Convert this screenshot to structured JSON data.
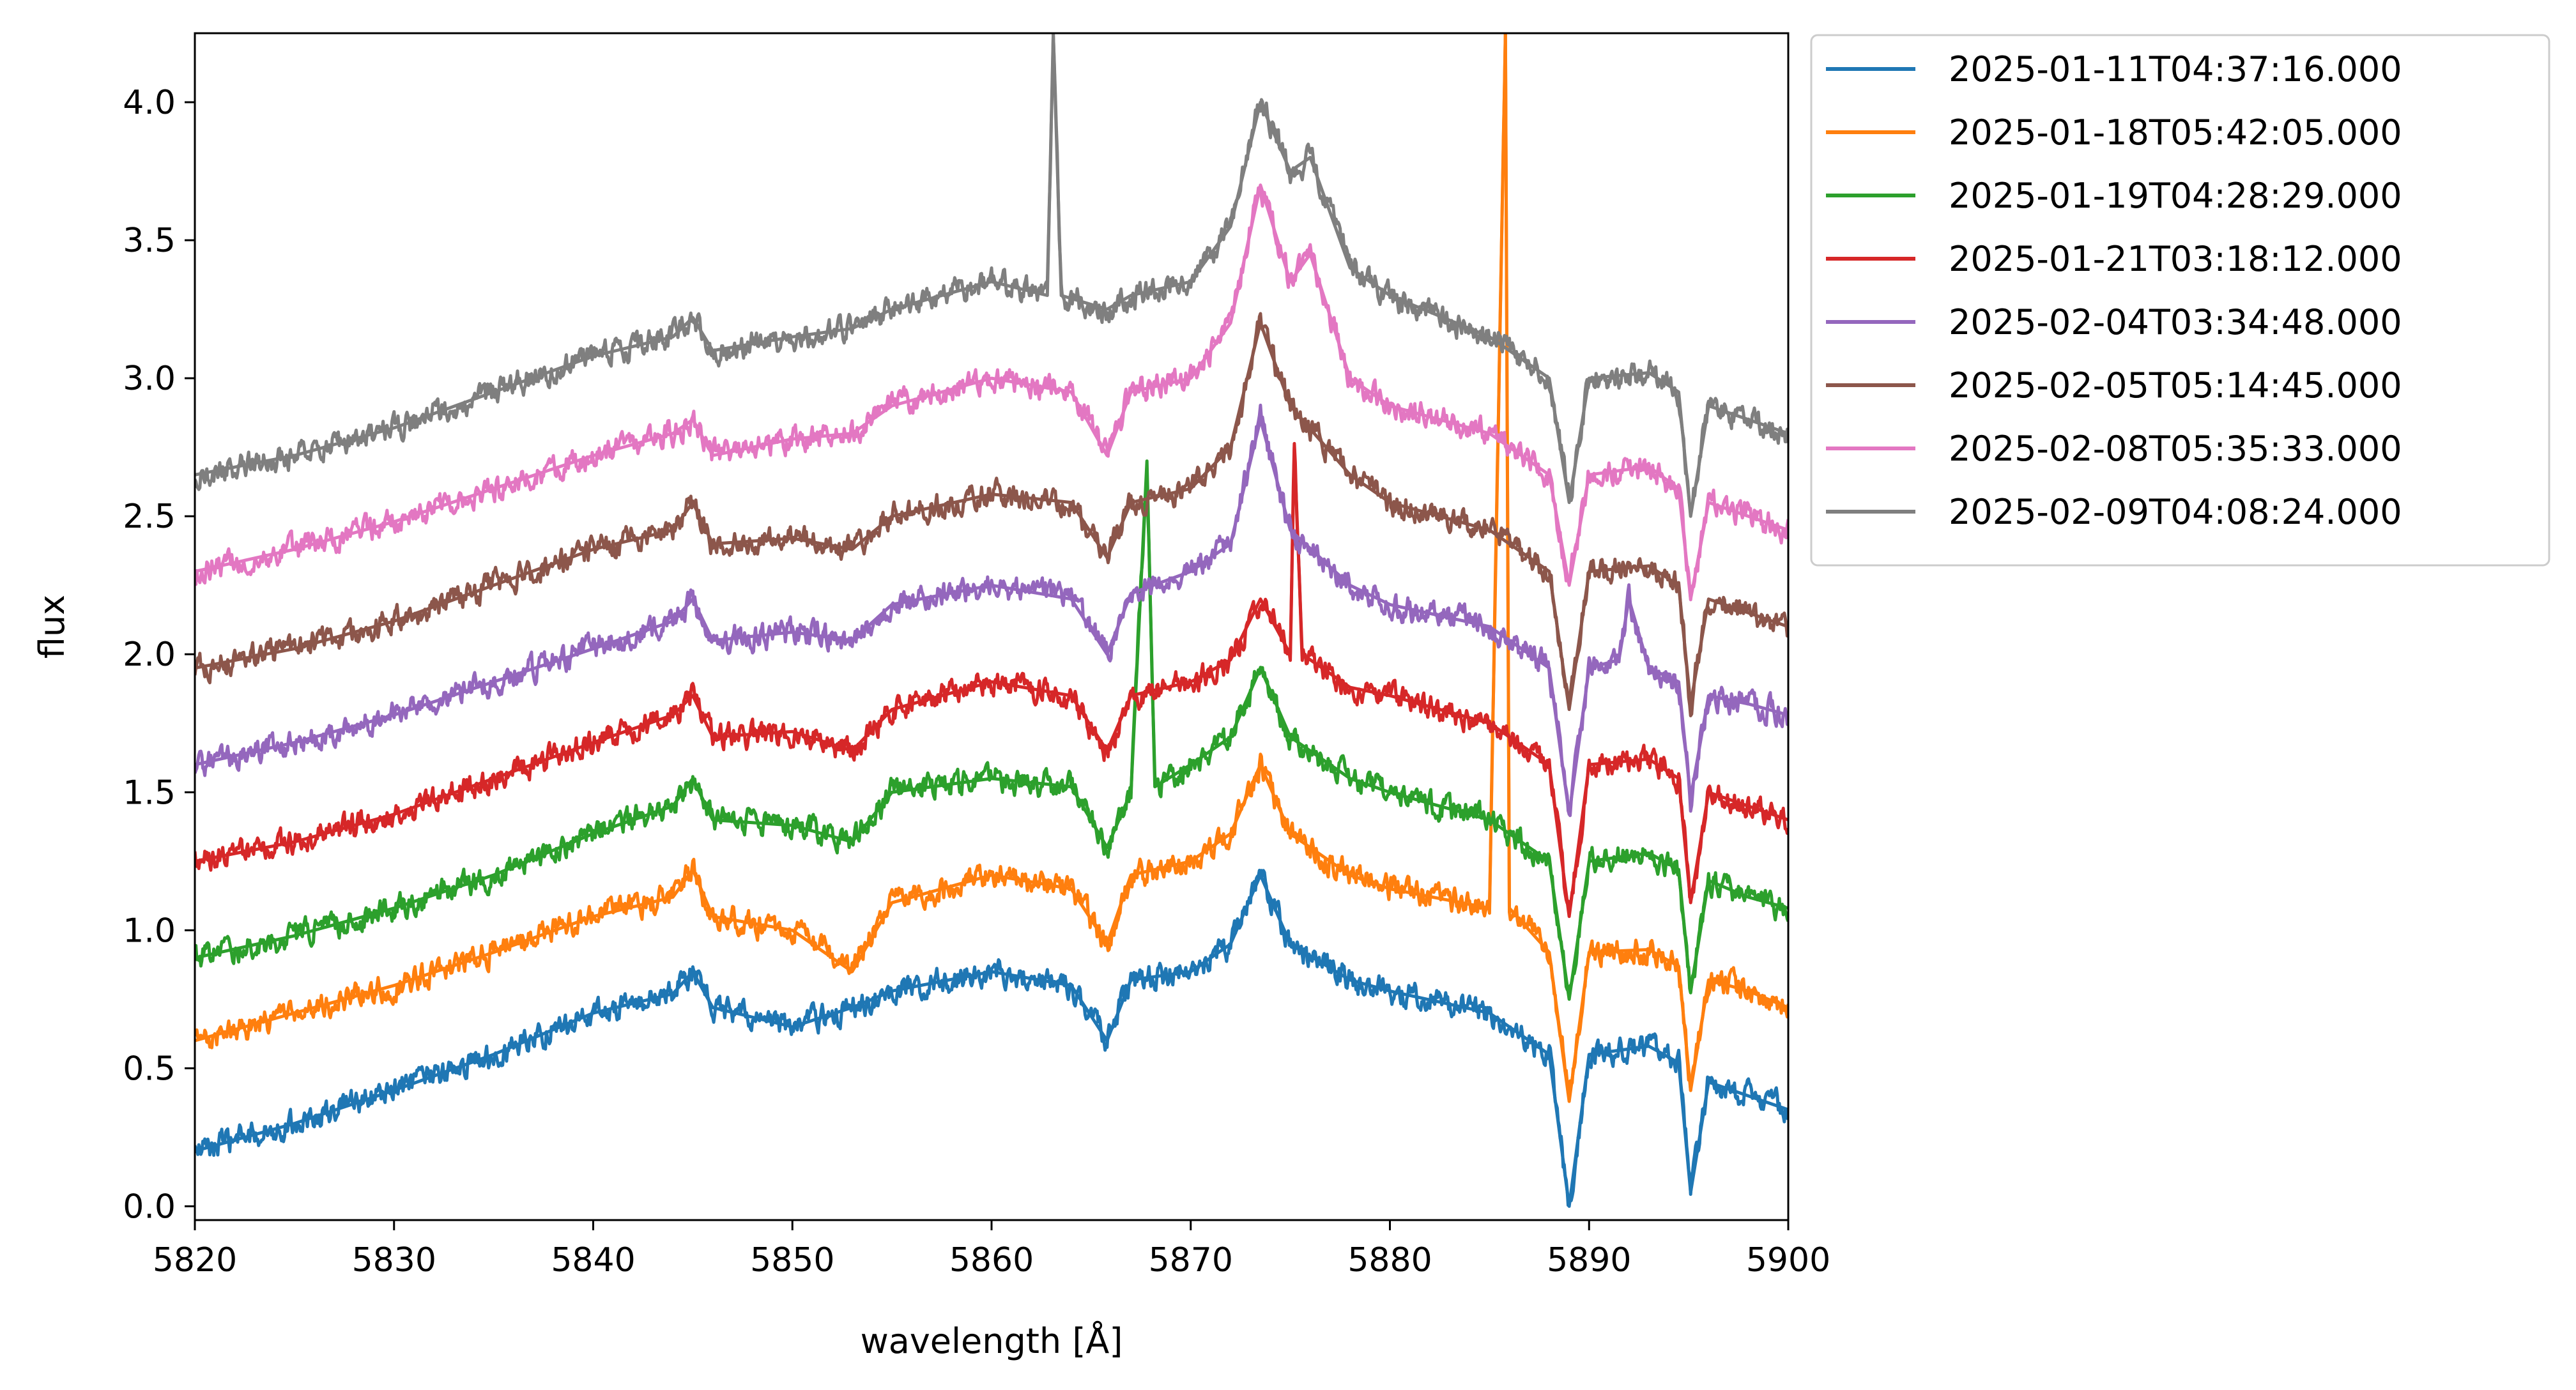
{
  "chart_data": {
    "type": "line",
    "title": "",
    "xlabel": "wavelength [Å]",
    "ylabel": "flux",
    "xlim": [
      5820,
      5900
    ],
    "ylim": [
      -0.05,
      4.25
    ],
    "xticks": [
      5820,
      5830,
      5840,
      5850,
      5860,
      5870,
      5880,
      5890,
      5900
    ],
    "xtick_labels": [
      "5820",
      "5830",
      "5840",
      "5850",
      "5860",
      "5870",
      "5880",
      "5890",
      "5900"
    ],
    "yticks": [
      0.0,
      0.5,
      1.0,
      1.5,
      2.0,
      2.5,
      3.0,
      3.5,
      4.0
    ],
    "ytick_labels": [
      "0.0",
      "0.5",
      "1.0",
      "1.5",
      "2.0",
      "2.5",
      "3.0",
      "3.5",
      "4.0"
    ],
    "grid": false,
    "legend_position": "outside-upper-right",
    "series": [
      {
        "name": "2025-01-11T04:37:16.000",
        "color": "#1f77b4",
        "offset": 0.0,
        "x": [
          5820,
          5825,
          5830,
          5835,
          5840,
          5844,
          5845,
          5846,
          5850,
          5853,
          5855,
          5860,
          5864,
          5865.8,
          5867,
          5870,
          5872,
          5873.5,
          5875,
          5878,
          5880,
          5885,
          5888,
          5889,
          5890,
          5893,
          5894.5,
          5895.1,
          5896,
          5898,
          5900
        ],
        "y": [
          0.2,
          0.3,
          0.42,
          0.55,
          0.7,
          0.77,
          0.85,
          0.72,
          0.65,
          0.72,
          0.78,
          0.85,
          0.8,
          0.6,
          0.82,
          0.85,
          0.95,
          1.2,
          0.95,
          0.82,
          0.78,
          0.7,
          0.55,
          0.0,
          0.55,
          0.58,
          0.52,
          0.05,
          0.45,
          0.4,
          0.35
        ]
      },
      {
        "name": "2025-01-18T05:42:05.000",
        "color": "#ff7f0e",
        "offset": 0.35,
        "x": [
          5820,
          5825,
          5830,
          5835,
          5840,
          5844,
          5845,
          5846,
          5850,
          5853,
          5855,
          5860,
          5864,
          5865.8,
          5867,
          5870,
          5872,
          5873.5,
          5875,
          5878,
          5880,
          5885,
          5885.8,
          5886,
          5888,
          5889,
          5890,
          5893,
          5894.5,
          5895.1,
          5896,
          5898,
          5900
        ],
        "y": [
          0.6,
          0.7,
          0.8,
          0.92,
          1.05,
          1.12,
          1.22,
          1.05,
          1.0,
          0.85,
          1.1,
          1.2,
          1.15,
          0.95,
          1.2,
          1.25,
          1.35,
          1.6,
          1.35,
          1.2,
          1.15,
          1.08,
          4.25,
          1.08,
          0.92,
          0.38,
          0.92,
          0.93,
          0.87,
          0.42,
          0.82,
          0.78,
          0.72
        ]
      },
      {
        "name": "2025-01-19T04:28:29.000",
        "color": "#2ca02c",
        "offset": 0.7,
        "x": [
          5820,
          5825,
          5830,
          5835,
          5840,
          5844,
          5845,
          5846,
          5850,
          5853,
          5855,
          5860,
          5864,
          5865.8,
          5867,
          5867.8,
          5868.2,
          5870,
          5872,
          5873.5,
          5875,
          5878,
          5880,
          5885,
          5888,
          5889,
          5890,
          5893,
          5894.5,
          5895.1,
          5896,
          5898,
          5900
        ],
        "y": [
          0.9,
          0.98,
          1.08,
          1.2,
          1.35,
          1.45,
          1.55,
          1.4,
          1.38,
          1.32,
          1.5,
          1.55,
          1.52,
          1.3,
          1.5,
          2.7,
          1.52,
          1.6,
          1.7,
          1.95,
          1.7,
          1.55,
          1.5,
          1.4,
          1.25,
          0.75,
          1.25,
          1.28,
          1.22,
          0.78,
          1.18,
          1.12,
          1.08
        ]
      },
      {
        "name": "2025-01-21T03:18:12.000",
        "color": "#d62728",
        "offset": 1.05,
        "x": [
          5820,
          5825,
          5830,
          5835,
          5840,
          5844,
          5845,
          5846,
          5850,
          5853,
          5855,
          5860,
          5864,
          5865.8,
          5867,
          5870,
          5872,
          5873.5,
          5875,
          5875.2,
          5875.6,
          5878,
          5880,
          5885,
          5888,
          5889,
          5890,
          5893,
          5894.5,
          5895.1,
          5896,
          5898,
          5900
        ],
        "y": [
          1.25,
          1.32,
          1.42,
          1.55,
          1.68,
          1.78,
          1.85,
          1.7,
          1.72,
          1.65,
          1.8,
          1.9,
          1.85,
          1.65,
          1.85,
          1.9,
          1.98,
          2.2,
          2.0,
          2.75,
          2.0,
          1.88,
          1.85,
          1.75,
          1.6,
          1.05,
          1.6,
          1.62,
          1.55,
          1.1,
          1.5,
          1.45,
          1.4
        ]
      },
      {
        "name": "2025-02-04T03:34:48.000",
        "color": "#9467bd",
        "offset": 1.4,
        "x": [
          5820,
          5825,
          5830,
          5835,
          5840,
          5844,
          5845,
          5846,
          5850,
          5853,
          5855,
          5860,
          5864,
          5865.8,
          5867,
          5870,
          5872,
          5873.5,
          5875,
          5878,
          5880,
          5885,
          5888,
          5889,
          5890,
          5891.5,
          5892,
          5893,
          5894.5,
          5895.1,
          5896,
          5898,
          5900
        ],
        "y": [
          1.6,
          1.68,
          1.78,
          1.9,
          2.02,
          2.12,
          2.2,
          2.05,
          2.08,
          2.05,
          2.18,
          2.25,
          2.2,
          2.0,
          2.22,
          2.3,
          2.4,
          2.85,
          2.45,
          2.25,
          2.18,
          2.1,
          1.95,
          1.42,
          1.95,
          1.98,
          2.2,
          1.95,
          1.9,
          1.48,
          1.85,
          1.82,
          1.78
        ]
      },
      {
        "name": "2025-02-05T05:14:45.000",
        "color": "#8c564b",
        "offset": 1.75,
        "x": [
          5820,
          5825,
          5830,
          5835,
          5840,
          5844,
          5845,
          5846,
          5850,
          5853,
          5855,
          5860,
          5864,
          5865.8,
          5867,
          5870,
          5872,
          5873.5,
          5875,
          5878,
          5880,
          5885,
          5888,
          5889,
          5890,
          5893,
          5894.5,
          5895.1,
          5896,
          5898,
          5900
        ],
        "y": [
          1.95,
          2.02,
          2.12,
          2.25,
          2.38,
          2.45,
          2.55,
          2.4,
          2.42,
          2.38,
          2.5,
          2.58,
          2.55,
          2.35,
          2.55,
          2.6,
          2.75,
          3.2,
          2.9,
          2.65,
          2.55,
          2.45,
          2.3,
          1.8,
          2.3,
          2.32,
          2.25,
          1.82,
          2.2,
          2.15,
          2.1
        ]
      },
      {
        "name": "2025-02-08T05:35:33.000",
        "color": "#e377c2",
        "offset": 2.1,
        "x": [
          5820,
          5825,
          5830,
          5835,
          5840,
          5844,
          5845,
          5846,
          5850,
          5853,
          5855,
          5860,
          5864,
          5865.8,
          5867,
          5870,
          5872,
          5873.5,
          5875,
          5876,
          5878,
          5880,
          5885,
          5888,
          5889,
          5890,
          5893,
          5894.5,
          5895.1,
          5896,
          5898,
          5900
        ],
        "y": [
          2.3,
          2.38,
          2.48,
          2.6,
          2.72,
          2.8,
          2.85,
          2.72,
          2.78,
          2.8,
          2.9,
          3.0,
          2.95,
          2.72,
          2.95,
          3.0,
          3.2,
          3.7,
          3.35,
          3.45,
          3.0,
          2.9,
          2.8,
          2.65,
          2.25,
          2.65,
          2.68,
          2.6,
          2.2,
          2.55,
          2.5,
          2.45
        ]
      },
      {
        "name": "2025-02-09T04:08:24.000",
        "color": "#7f7f7f",
        "offset": 2.45,
        "x": [
          5820,
          5825,
          5830,
          5835,
          5840,
          5844,
          5845,
          5846,
          5850,
          5853,
          5855,
          5860,
          5862.8,
          5863.1,
          5863.5,
          5865.8,
          5867,
          5870,
          5872,
          5873.5,
          5875,
          5876,
          5878,
          5880,
          5885,
          5888,
          5889,
          5890,
          5893,
          5894.5,
          5895.1,
          5896,
          5898,
          5900
        ],
        "y": [
          2.65,
          2.72,
          2.82,
          2.95,
          3.08,
          3.15,
          3.22,
          3.1,
          3.15,
          3.18,
          3.25,
          3.35,
          3.3,
          4.25,
          3.3,
          3.25,
          3.3,
          3.35,
          3.55,
          4.0,
          3.75,
          3.8,
          3.4,
          3.3,
          3.15,
          3.0,
          2.55,
          3.0,
          3.02,
          2.95,
          2.5,
          2.9,
          2.85,
          2.8
        ]
      }
    ]
  }
}
